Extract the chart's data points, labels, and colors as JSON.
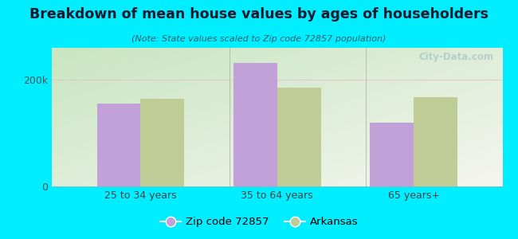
{
  "title": "Breakdown of mean house values by ages of householders",
  "subtitle": "(Note: State values scaled to Zip code 72857 population)",
  "categories": [
    "25 to 34 years",
    "35 to 64 years",
    "65 years+"
  ],
  "zip_values": [
    155000,
    232000,
    120000
  ],
  "state_values": [
    165000,
    185000,
    168000
  ],
  "zip_color": "#c2a0d8",
  "state_color": "#c0cc96",
  "background_color": "#00eeff",
  "plot_bg_top_left": "#c8e6c0",
  "plot_bg_right": "#f0f0e8",
  "ylim": [
    0,
    260000
  ],
  "yticks": [
    0,
    200000
  ],
  "ytick_labels": [
    "0",
    "200k"
  ],
  "bar_width": 0.32,
  "legend_labels": [
    "Zip code 72857",
    "Arkansas"
  ],
  "watermark": "City-Data.com"
}
